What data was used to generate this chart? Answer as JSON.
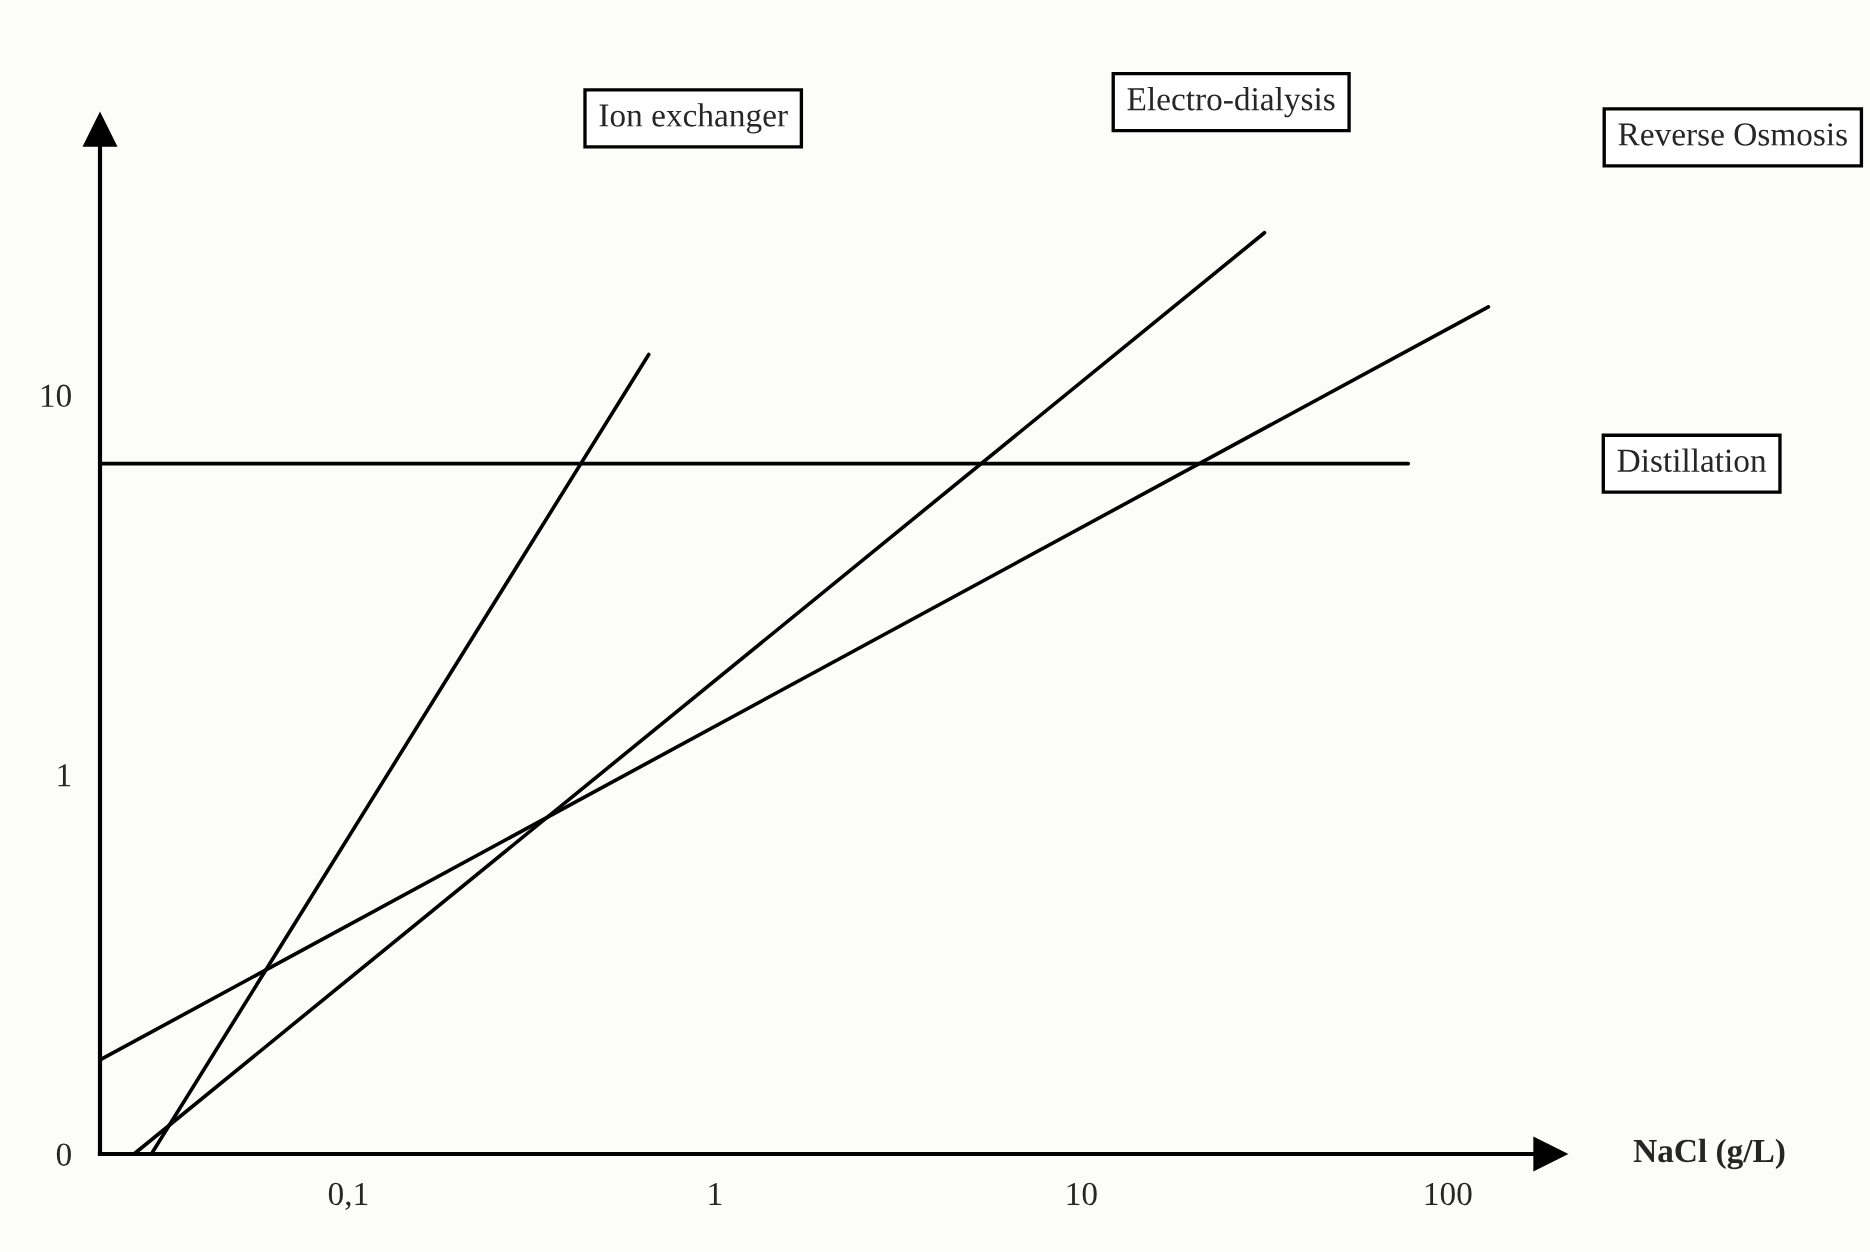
{
  "chart_data": {
    "type": "line",
    "xlabel": "NaCl (g/L)",
    "log": "xy",
    "grid": false,
    "legend": false,
    "marker": "none",
    "line_style": "solid",
    "xlim": [
      0.021,
      190
    ],
    "ylim": [
      0.1,
      50
    ],
    "xticks": [
      {
        "value": 0.1,
        "label": "0,1"
      },
      1,
      10,
      100
    ],
    "yticks": [
      {
        "value": 0.1,
        "label": "0"
      },
      1,
      10
    ],
    "series": [
      {
        "name": "Ion exchanger",
        "color": "#000000",
        "x": [
          0.029,
          0.66
        ],
        "values": [
          0.1,
          12.8
        ]
      },
      {
        "name": "Electro-dialysis",
        "color": "#000000",
        "x": [
          0.026,
          31.6
        ],
        "values": [
          0.1,
          26.8
        ]
      },
      {
        "name": "Reverse Osmosis",
        "color": "#000000",
        "x": [
          0.021,
          129
        ],
        "values": [
          0.177,
          17.1
        ]
      },
      {
        "name": "Distillation",
        "color": "#000000",
        "x": [
          0.021,
          78
        ],
        "values": [
          6.6,
          6.6
        ]
      }
    ]
  }
}
